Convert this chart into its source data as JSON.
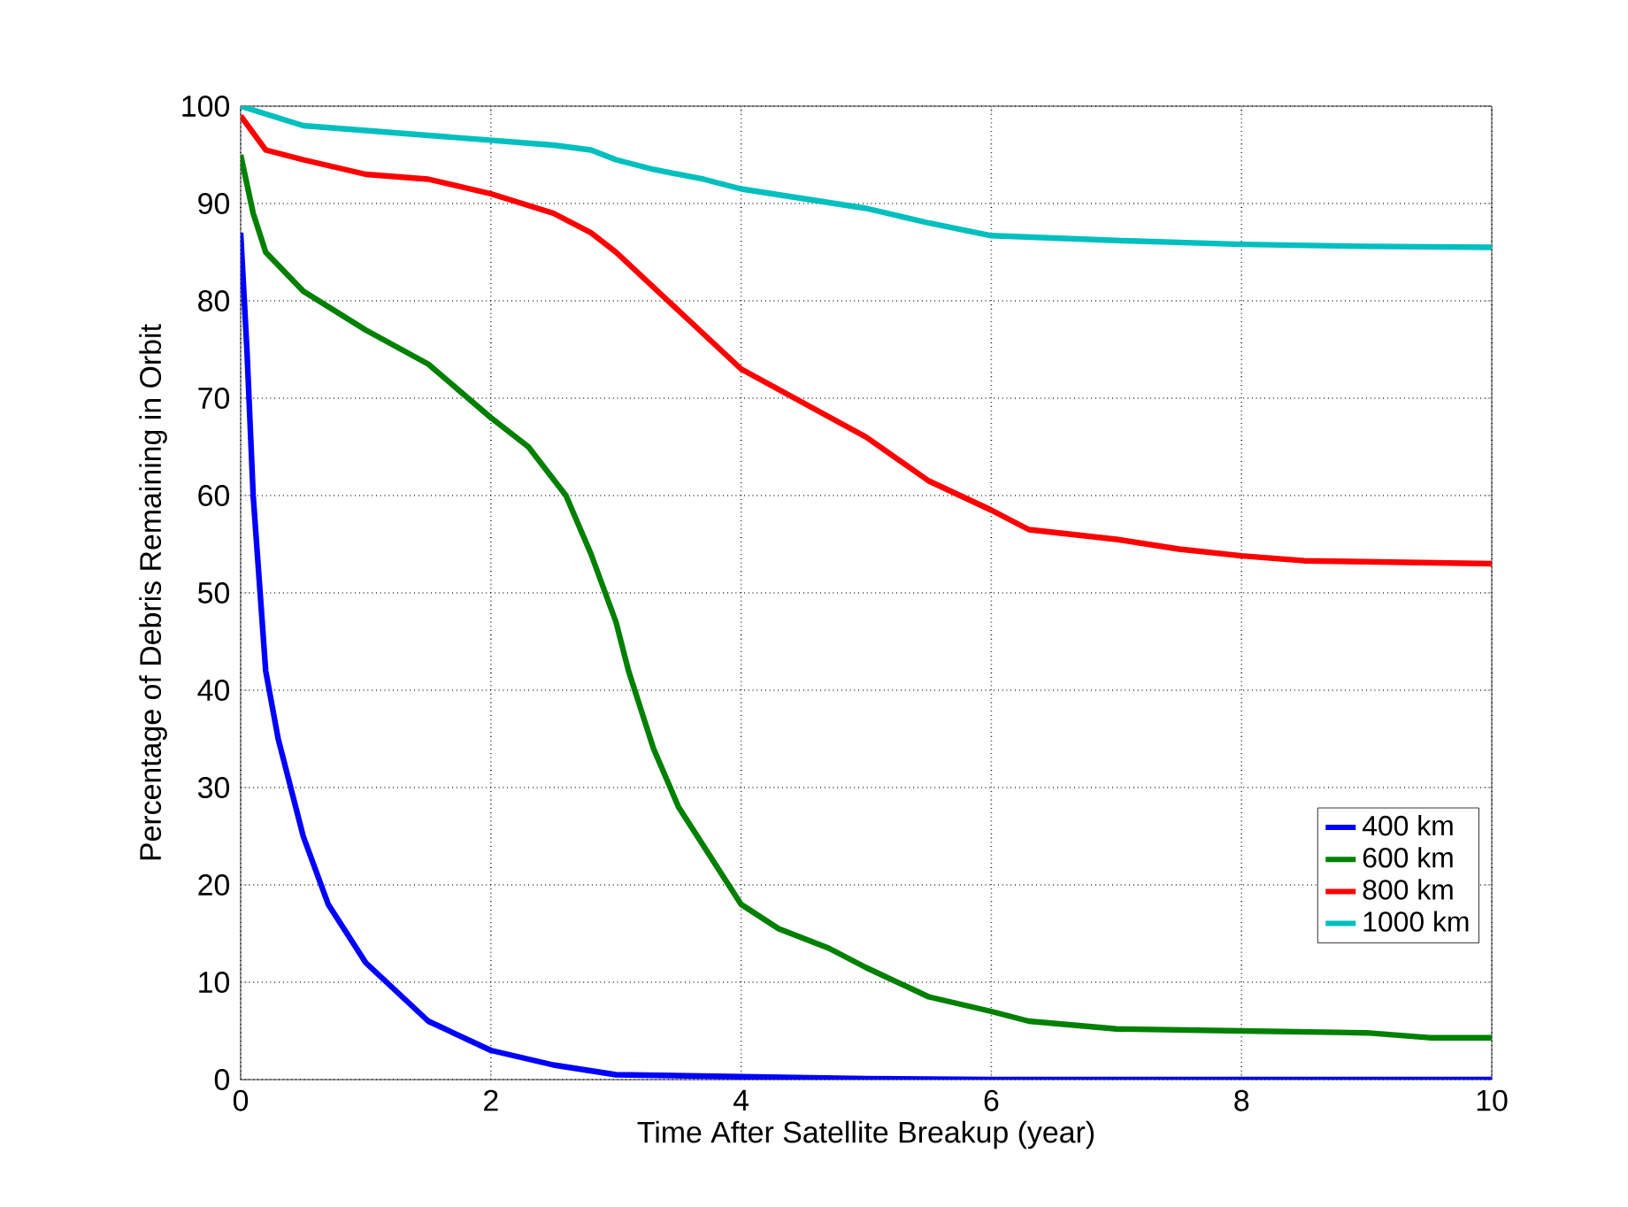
{
  "chart_data": {
    "type": "line",
    "xlabel": "Time After Satellite Breakup (year)",
    "ylabel": "Percentage of Debris Remaining in Orbit",
    "xlim": [
      0,
      10
    ],
    "ylim": [
      0,
      100
    ],
    "xticks": [
      0,
      2,
      4,
      6,
      8,
      10
    ],
    "yticks": [
      0,
      10,
      20,
      30,
      40,
      50,
      60,
      70,
      80,
      90,
      100
    ],
    "grid": true,
    "legend": "bottom right",
    "marker": "none",
    "line_style": "solid",
    "series": [
      {
        "name": "400 km",
        "color": "#0000ff",
        "x": [
          0,
          0.05,
          0.1,
          0.2,
          0.3,
          0.5,
          0.7,
          1,
          1.5,
          2,
          2.5,
          3,
          4,
          5,
          6,
          10
        ],
        "values": [
          87,
          75,
          60,
          42,
          35,
          25,
          18,
          12,
          6,
          3,
          1.5,
          0.5,
          0.3,
          0.1,
          0,
          0
        ]
      },
      {
        "name": "600 km",
        "color": "#008000",
        "x": [
          0,
          0.1,
          0.2,
          0.5,
          1,
          1.5,
          2,
          2.3,
          2.6,
          2.8,
          3,
          3.1,
          3.3,
          3.5,
          3.8,
          4,
          4.3,
          4.7,
          5,
          5.5,
          6,
          6.3,
          7,
          8,
          9,
          9.5,
          10
        ],
        "values": [
          95,
          89,
          85,
          81,
          77,
          73.5,
          68,
          65,
          60,
          54,
          47,
          42,
          34,
          28,
          22,
          18,
          15.5,
          13.5,
          11.5,
          8.5,
          7,
          6,
          5.2,
          5,
          4.8,
          4.3,
          4.3
        ]
      },
      {
        "name": "800 km",
        "color": "#ff0000",
        "x": [
          0,
          0.2,
          0.5,
          1,
          1.5,
          2,
          2.5,
          2.8,
          3,
          3.5,
          4,
          4.5,
          5,
          5.5,
          6,
          6.3,
          7,
          7.5,
          8,
          8.5,
          10
        ],
        "values": [
          99,
          95.5,
          94.5,
          93,
          92.5,
          91,
          89,
          87,
          85,
          79,
          73,
          69.5,
          66,
          61.5,
          58.5,
          56.5,
          55.5,
          54.5,
          53.8,
          53.3,
          53
        ]
      },
      {
        "name": "1000 km",
        "color": "#00bfbf",
        "x": [
          0,
          0.5,
          1,
          1.5,
          2,
          2.5,
          2.8,
          3,
          3.3,
          3.7,
          4,
          4.5,
          5,
          5.5,
          6,
          7,
          8,
          9,
          10
        ],
        "values": [
          100,
          98,
          97.5,
          97,
          96.5,
          96,
          95.5,
          94.5,
          93.5,
          92.5,
          91.5,
          90.5,
          89.5,
          88,
          86.7,
          86.2,
          85.8,
          85.6,
          85.5
        ]
      }
    ]
  }
}
